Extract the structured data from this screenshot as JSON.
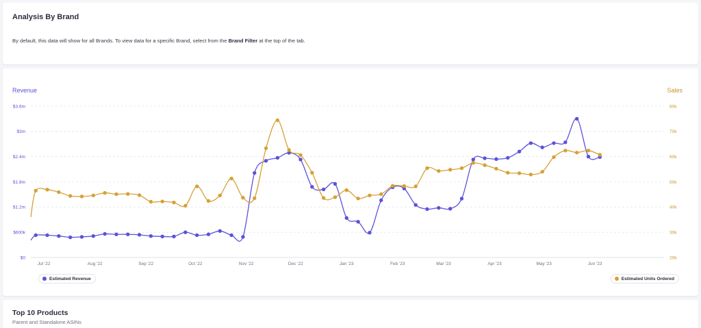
{
  "intro": {
    "title": "Analysis By Brand",
    "desc_before": "By default, this data will show for all Brands. To view data for a specific Brand, select from the ",
    "desc_bold": "Brand Filter",
    "desc_after": " at the top of the tab."
  },
  "chart_data": {
    "type": "line",
    "ylabel": "Revenue",
    "y2label": "Sales",
    "ylim": [
      0,
      3600000
    ],
    "y2lim": [
      20000,
      80000
    ],
    "yticks": [
      "$0",
      "$600k",
      "$1.2m",
      "$1.8m",
      "$2.4m",
      "$3m",
      "$3.6m"
    ],
    "y2ticks": [
      "20k",
      "30k",
      "40k",
      "50k",
      "60k",
      "70k",
      "80k"
    ],
    "xticks": [
      "Jul '22",
      "Aug '22",
      "Sep '22",
      "Oct '22",
      "Nov '22",
      "Dec '22",
      "Jan '23",
      "Feb '23",
      "Mar '23",
      "Apr '23",
      "May '23",
      "Jun '23"
    ],
    "x": [
      "2022-07-03",
      "2022-07-10",
      "2022-07-17",
      "2022-07-24",
      "2022-07-31",
      "2022-08-07",
      "2022-08-14",
      "2022-08-21",
      "2022-08-28",
      "2022-09-04",
      "2022-09-11",
      "2022-09-18",
      "2022-09-25",
      "2022-10-02",
      "2022-10-09",
      "2022-10-16",
      "2022-10-23",
      "2022-10-30",
      "2022-11-06",
      "2022-11-13",
      "2022-11-20",
      "2022-11-27",
      "2022-12-04",
      "2022-12-11",
      "2022-12-18",
      "2022-12-25",
      "2023-01-01",
      "2023-01-08",
      "2023-01-15",
      "2023-01-22",
      "2023-01-29",
      "2023-02-05",
      "2023-02-12",
      "2023-02-19",
      "2023-02-26",
      "2023-03-05",
      "2023-03-12",
      "2023-03-19",
      "2023-03-26",
      "2023-04-02",
      "2023-04-09",
      "2023-04-16",
      "2023-04-23",
      "2023-04-30",
      "2023-05-07",
      "2023-05-14",
      "2023-05-21",
      "2023-05-28",
      "2023-06-04",
      "2023-06-11"
    ],
    "grid": true,
    "legend_placement": "bottom",
    "series": [
      {
        "name": "Estimated Revenue",
        "axis": "left",
        "color": "#5b52d9",
        "start_value": 410000,
        "start_date": "2022-06-30",
        "values": [
          530000,
          530000,
          510000,
          480000,
          490000,
          510000,
          560000,
          550000,
          550000,
          540000,
          510000,
          500000,
          500000,
          600000,
          530000,
          550000,
          630000,
          530000,
          490000,
          2010000,
          2300000,
          2370000,
          2490000,
          2330000,
          1680000,
          1620000,
          1750000,
          940000,
          850000,
          590000,
          1360000,
          1670000,
          1640000,
          1250000,
          1150000,
          1180000,
          1160000,
          1400000,
          2330000,
          2360000,
          2340000,
          2370000,
          2520000,
          2720000,
          2620000,
          2720000,
          2740000,
          3300000,
          2400000,
          2390000
        ]
      },
      {
        "name": "Estimated Units Ordered",
        "axis": "right",
        "color": "#d6a135",
        "start_value": 36000,
        "start_date": "2022-06-30",
        "values": [
          46500,
          46900,
          45900,
          44400,
          44200,
          44600,
          45600,
          45100,
          45200,
          44700,
          42100,
          42200,
          41800,
          40500,
          48200,
          42400,
          44600,
          51300,
          43700,
          43500,
          63300,
          74400,
          62600,
          60600,
          53600,
          43600,
          43900,
          46700,
          43400,
          44600,
          45100,
          48400,
          48300,
          48200,
          55400,
          54300,
          54800,
          55400,
          57500,
          56600,
          55200,
          53600,
          53400,
          52900,
          54000,
          59800,
          62400,
          61600,
          62400,
          60700
        ]
      }
    ]
  },
  "legend": {
    "revenue": "Estimated Revenue",
    "units": "Estimated Units Ordered"
  },
  "colors": {
    "revenue": "#5b52d9",
    "units": "#d6a135"
  },
  "products": {
    "title": "Top 10 Products",
    "subtitle": "Parent and Standalone ASINs"
  }
}
